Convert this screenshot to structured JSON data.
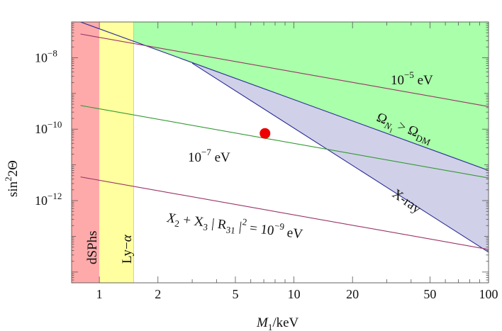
{
  "chart_data": {
    "type": "line",
    "xlabel": "M_1/keV",
    "ylabel": "sin^2 2Θ",
    "x_scale": "log",
    "y_scale": "log",
    "xlim": [
      0.72,
      100
    ],
    "ylim": [
      5e-15,
      1e-07
    ],
    "x_ticks": [
      1,
      2,
      5,
      10,
      20,
      50,
      100
    ],
    "x_tick_labels": [
      "1",
      "2",
      "5",
      "10",
      "20",
      "50",
      "100"
    ],
    "y_ticks": [
      1e-08,
      1e-10,
      1e-12
    ],
    "y_tick_labels": [
      {
        "base": "10",
        "exp": "−8"
      },
      {
        "base": "10",
        "exp": "−10"
      },
      {
        "base": "10",
        "exp": "−12"
      }
    ],
    "regions": [
      {
        "label": "dSPhs",
        "x_range": [
          0.72,
          1.0
        ],
        "color": "#ffaaaa"
      },
      {
        "label": "Ly−α",
        "x_range": [
          1.0,
          1.5
        ],
        "color": "#ffff9f"
      },
      {
        "label": "Ω_{N_1} > Ω_DM",
        "boundary": [
          [
            0.8,
            1e-07
          ],
          [
            100,
            7e-12
          ]
        ],
        "color": "#aaffaa"
      },
      {
        "label": "X-ray",
        "boundary": [
          [
            3.0,
            7e-09
          ],
          [
            100,
            3.6e-14
          ]
        ],
        "color": "#d0d0e8"
      }
    ],
    "series": [
      {
        "name": "10^{-5} eV",
        "color": "#993366",
        "points": [
          [
            0.8,
            4.6e-08
          ],
          [
            100,
            4.3e-10
          ]
        ]
      },
      {
        "name": "10^{-7} eV",
        "color": "#339933",
        "points": [
          [
            0.8,
            4.6e-10
          ],
          [
            100,
            4.3e-12
          ]
        ]
      },
      {
        "name": "X_2 + X_3 |R_31|^2 = 10^{-9} eV",
        "color": "#993366",
        "points": [
          [
            0.8,
            4.6e-12
          ],
          [
            100,
            4.3e-14
          ]
        ]
      }
    ],
    "marker": {
      "x": 7.1,
      "y": 7.6e-11,
      "color": "#ee0000"
    },
    "annotations": {
      "dsphs": "dSPhs",
      "lya_base": "Ly−",
      "lya_alpha": "α",
      "line_top_mant": "10",
      "line_top_exp": "−5",
      "line_top_unit": " eV",
      "line_mid_mant": "10",
      "line_mid_exp": "−7",
      "line_mid_unit": " eV",
      "relic_omega": "Ω",
      "relic_sub_n": "N",
      "relic_sub_1": "1",
      "relic_gt": " > Ω",
      "relic_dm": "DM",
      "xray": "X-ray",
      "bottom_x": "X",
      "bottom_2": "2",
      "bottom_plus": " + X",
      "bottom_3": "3",
      "bottom_bar": " | R",
      "bottom_31": "31",
      "bottom_bar2": " |",
      "bottom_sq": "2",
      "bottom_eq": " = 10",
      "bottom_exp": "−9",
      "bottom_unit": " eV"
    },
    "axis_title_x": {
      "var": "M",
      "sub": "1",
      "rest": "/keV"
    },
    "axis_title_y": {
      "base": "sin",
      "sup": "2",
      "rest": "2Θ"
    },
    "grid": false,
    "legend": "none"
  }
}
